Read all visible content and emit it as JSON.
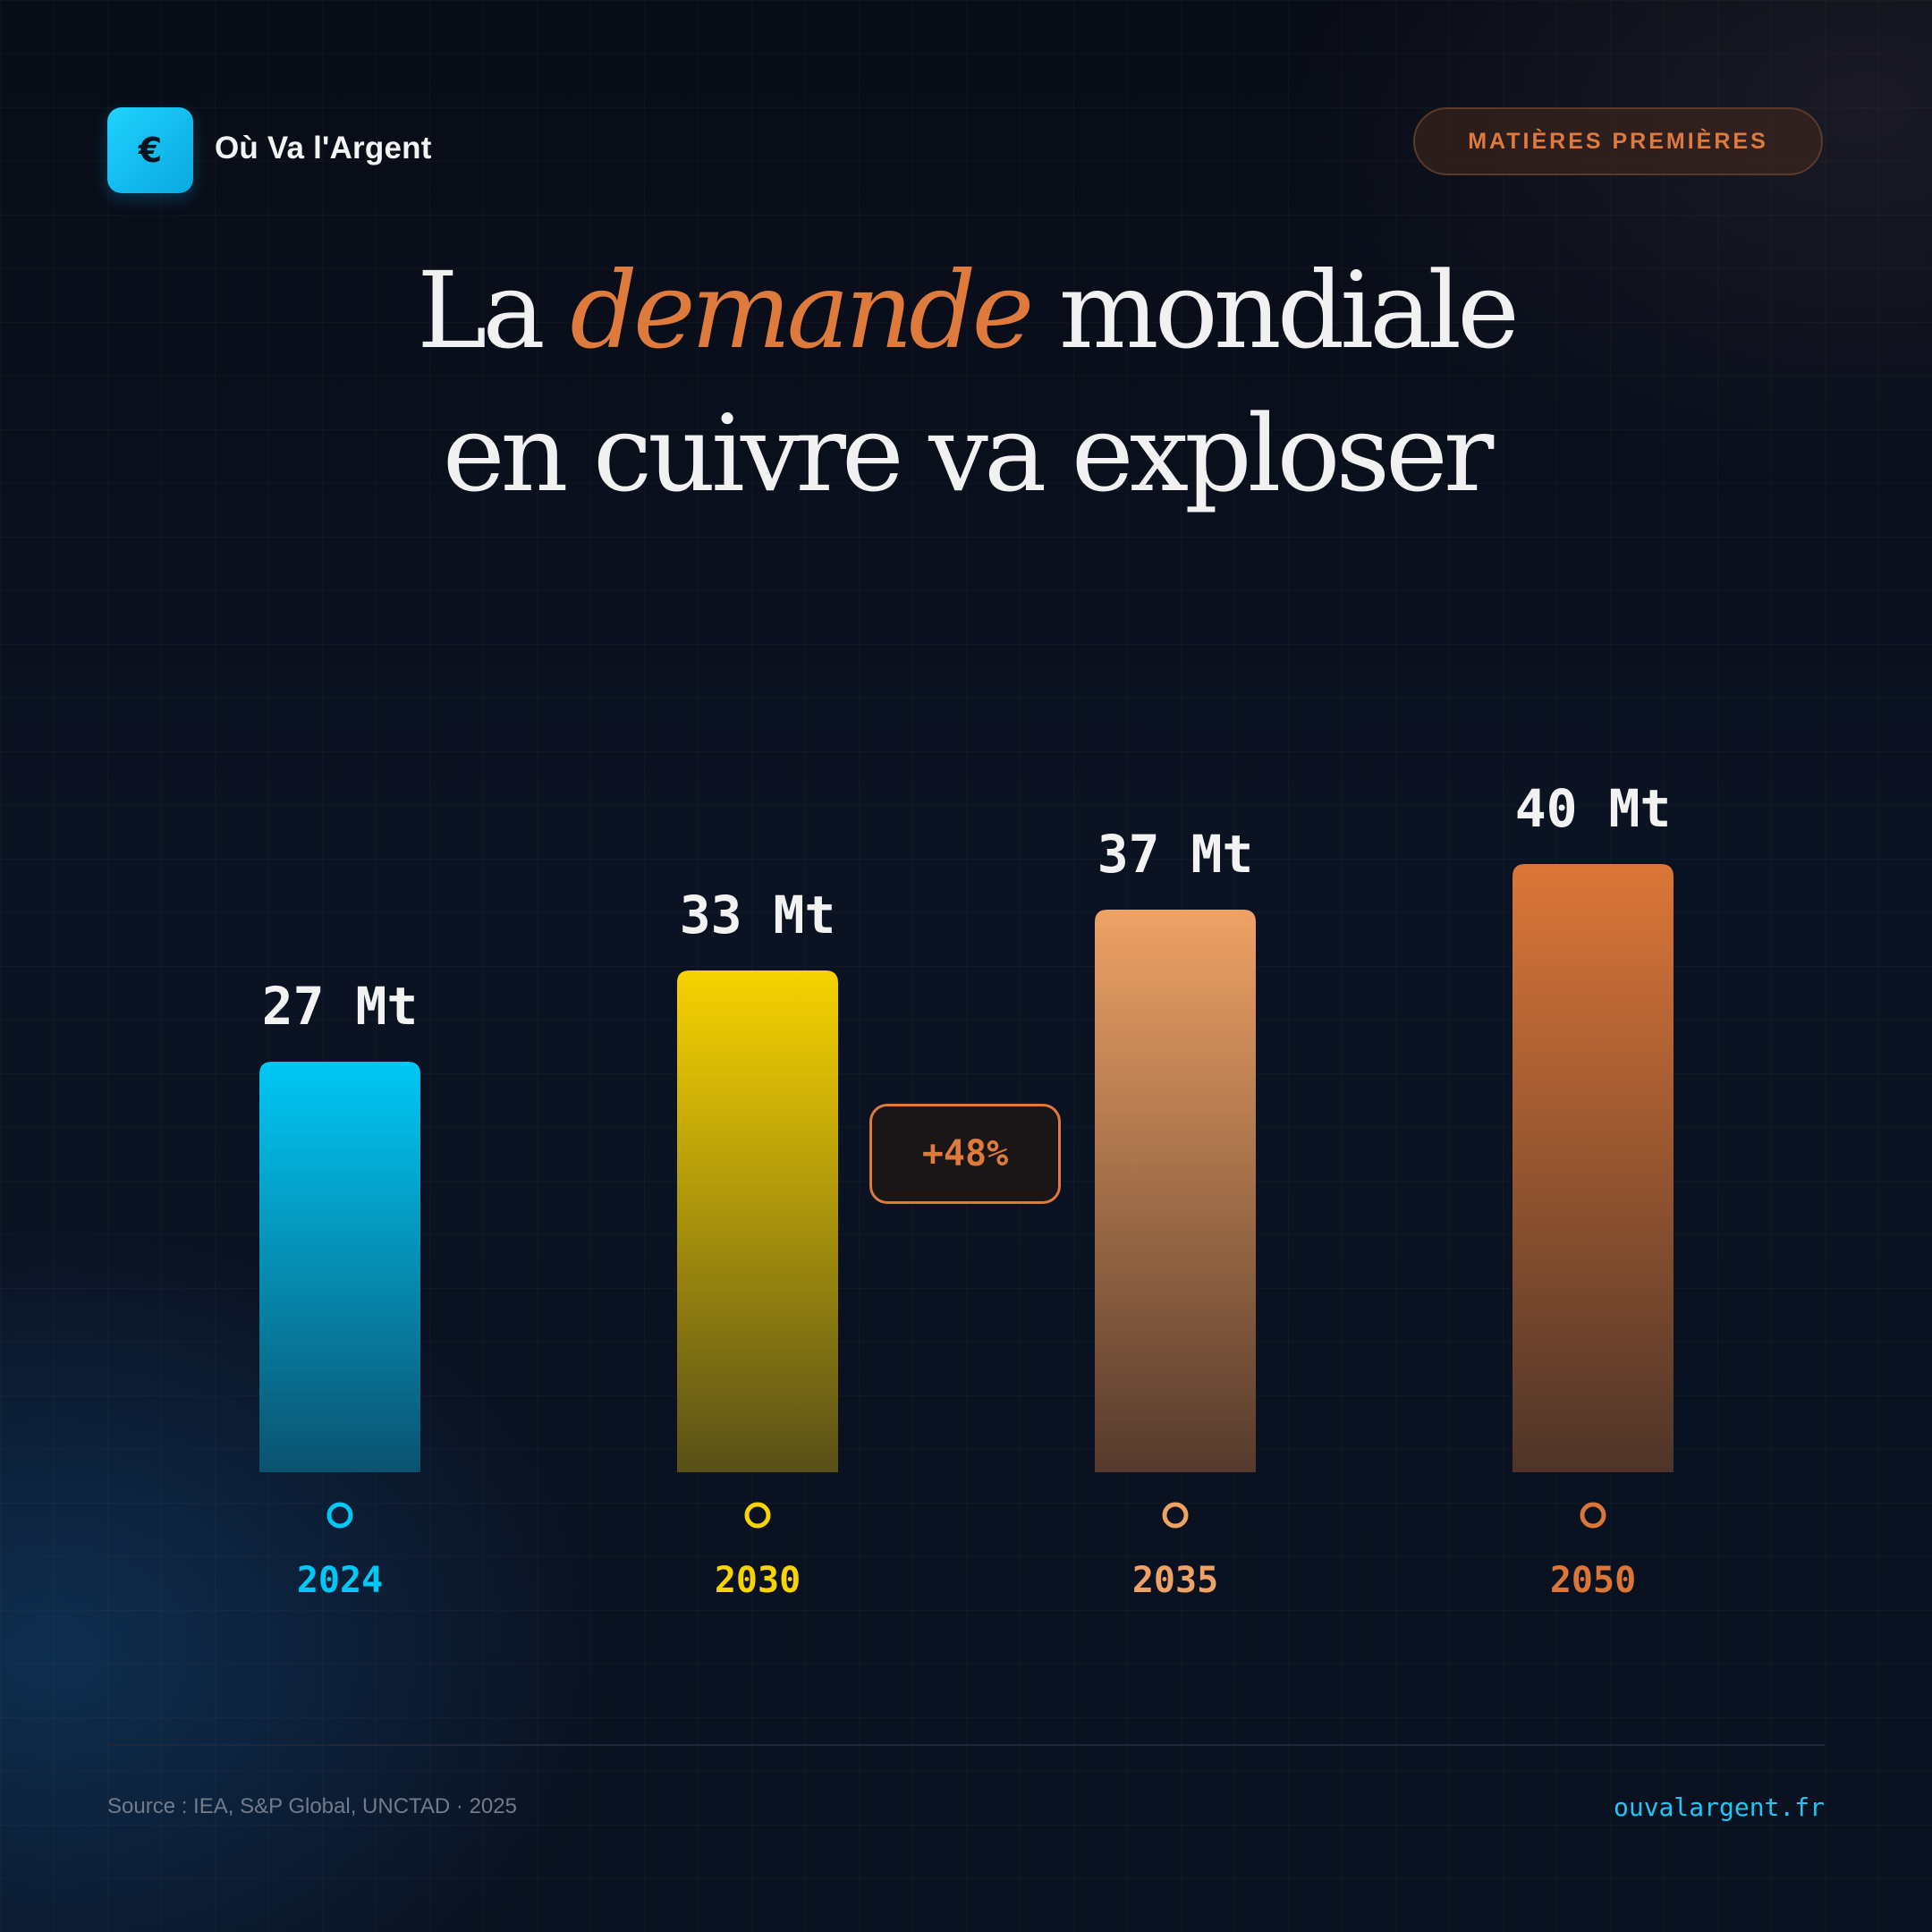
{
  "brand": {
    "logo_glyph": "€",
    "name": "Où Va l'Argent"
  },
  "tag": "MATIÈRES PREMIÈRES",
  "title": {
    "line1_pre": "La",
    "line1_accent": "demande",
    "line1_post": "mondiale",
    "line2": "en cuivre va exploser"
  },
  "chart_data": {
    "type": "bar",
    "title": "La demande mondiale en cuivre va exploser",
    "categories": [
      "2024",
      "2030",
      "2035",
      "2050"
    ],
    "values": [
      27,
      33,
      37,
      40
    ],
    "labels": [
      "27 Mt",
      "33 Mt",
      "37 Mt",
      "40 Mt"
    ],
    "unit": "Mt",
    "ylim": [
      0,
      40
    ],
    "annotation": "+48%",
    "colors": [
      "#00c8f5",
      "#f7d300",
      "#eea265",
      "#dc7638"
    ]
  },
  "footer": {
    "source": "Source : IEA, S&P Global, UNCTAD · 2025",
    "site": "ouvalargent.fr"
  }
}
